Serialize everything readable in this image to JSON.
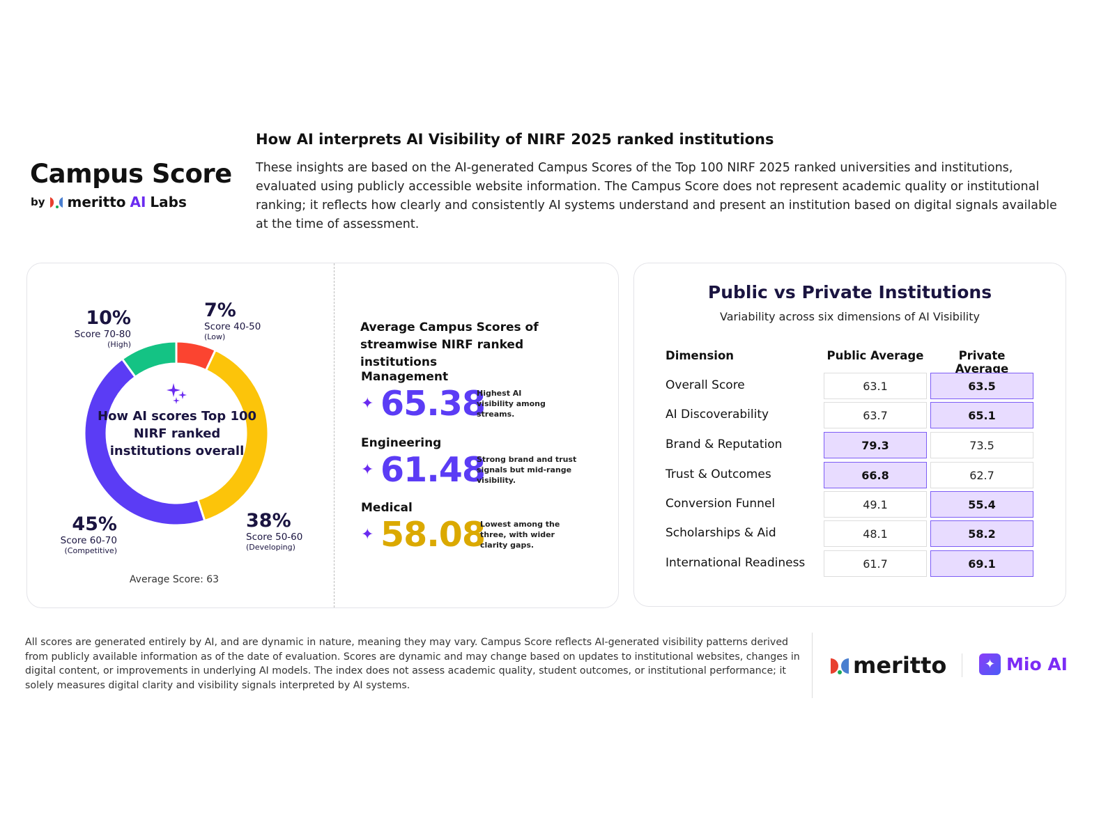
{
  "brand": {
    "title": "Campus Score",
    "by": "by",
    "meritto": "meritto",
    "ai": "AI",
    "labs": "Labs"
  },
  "headline": "How AI interprets AI Visibility of NIRF 2025 ranked institutions",
  "intro": "These insights are based on the AI-generated Campus Scores of the Top 100 NIRF 2025 ranked universities and institutions, evaluated using publicly accessible website information. The Campus Score does not represent academic quality or institutional ranking; it reflects how clearly and consistently AI systems understand and present an institution based on digital signals available at the time of assessment.",
  "chart_data": {
    "type": "pie",
    "donut": true,
    "center_label": "How AI scores Top 100 NIRF ranked institutions overall",
    "slices": [
      {
        "pct": "7%",
        "value": 7,
        "range": "Score 40-50",
        "tier": "(Low)",
        "color": "#fb4430"
      },
      {
        "pct": "38%",
        "value": 38,
        "range": "Score 50-60",
        "tier": "(Developing)",
        "color": "#fcc40a"
      },
      {
        "pct": "45%",
        "value": 45,
        "range": "Score 60-70",
        "tier": "(Competitive)",
        "color": "#5b3cf5"
      },
      {
        "pct": "10%",
        "value": 10,
        "range": "Score 70-80",
        "tier": "(High)",
        "color": "#14c384"
      }
    ],
    "footnote": "Average Score: 63"
  },
  "streams": {
    "title": "Average Campus Scores of streamwise NIRF ranked institutions",
    "items": [
      {
        "name": "Management",
        "value": "65.38",
        "note": "Highest AI visibility among streams.",
        "color": "#5b3cf5"
      },
      {
        "name": "Engineering",
        "value": "61.48",
        "note": "Strong brand and trust signals but mid-range visibility.",
        "color": "#5b3cf5"
      },
      {
        "name": "Medical",
        "value": "58.08",
        "note": "Lowest among the three, with wider clarity gaps.",
        "color": "#dba900"
      }
    ]
  },
  "comparison": {
    "title": "Public vs Private Institutions",
    "subtitle": "Variability across six dimensions of AI Visibility",
    "headers": [
      "Dimension",
      "Public Average",
      "Private Average"
    ],
    "rows": [
      {
        "dimension": "Overall Score",
        "public": "63.1",
        "private": "63.5",
        "higher": "private"
      },
      {
        "dimension": "AI Discoverability",
        "public": "63.7",
        "private": "65.1",
        "higher": "private"
      },
      {
        "dimension": "Brand & Reputation",
        "public": "79.3",
        "private": "73.5",
        "higher": "public"
      },
      {
        "dimension": "Trust & Outcomes",
        "public": "66.8",
        "private": "62.7",
        "higher": "public"
      },
      {
        "dimension": "Conversion Funnel",
        "public": "49.1",
        "private": "55.4",
        "higher": "private"
      },
      {
        "dimension": "Scholarships & Aid",
        "public": "48.1",
        "private": "58.2",
        "higher": "private"
      },
      {
        "dimension": "International Readiness",
        "public": "61.7",
        "private": "69.1",
        "higher": "private"
      }
    ]
  },
  "disclaimer": "All scores are generated entirely by AI, and are dynamic in nature, meaning they may vary. Campus Score reflects AI-generated visibility patterns derived from publicly available information as of the date of evaluation. Scores are dynamic and may change based on updates to institutional websites, changes in digital content, or improvements in underlying AI models. The index does not assess academic quality, student outcomes, or institutional performance; it solely measures digital clarity and visibility signals interpreted by AI systems.",
  "footer": {
    "meritto": "meritto",
    "mio": "Mio AI"
  }
}
